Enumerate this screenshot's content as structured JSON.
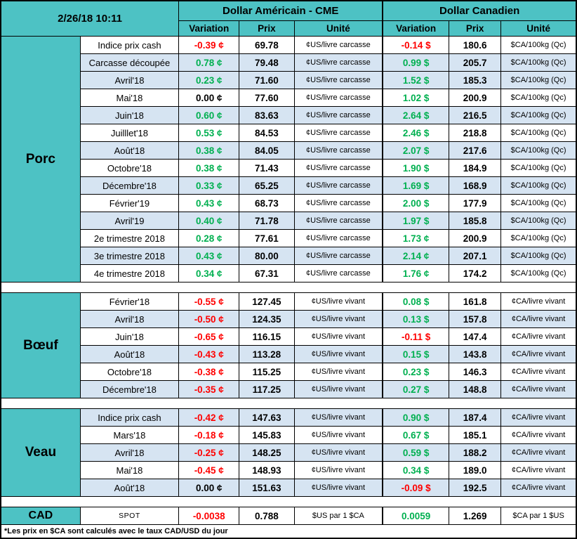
{
  "meta": {
    "timestamp": "2/26/18 10:11"
  },
  "headers": {
    "usd_title": "Dollar Américain - CME",
    "cad_title": "Dollar Canadien",
    "variation": "Variation",
    "prix": "Prix",
    "unite": "Unité"
  },
  "colors": {
    "header_bg": "#4dc2c4",
    "row_alt_bg": "#d6e4f2",
    "negative": "#ff0000",
    "positive": "#00b050"
  },
  "footnote": "*Les prix en $CA sont calculés avec le taux CAD/USD du jour",
  "sections": [
    {
      "name": "Porc",
      "rows": [
        {
          "label": "Indice prix cash",
          "shade": "plain",
          "us_var": "-0.39 ¢",
          "us_trend": "neg",
          "us_prix": "69.78",
          "us_unit": "¢US/livre carcasse",
          "ca_var": "-0.14 $",
          "ca_trend": "neg",
          "ca_prix": "180.6",
          "ca_unit": "$CA/100kg (Qc)"
        },
        {
          "label": "Carcasse découpée",
          "shade": "alt",
          "us_var": "0.78 ¢",
          "us_trend": "pos",
          "us_prix": "79.48",
          "us_unit": "¢US/livre carcasse",
          "ca_var": "0.99 $",
          "ca_trend": "pos",
          "ca_prix": "205.7",
          "ca_unit": "$CA/100kg (Qc)"
        },
        {
          "label": "Avril'18",
          "shade": "alt",
          "us_var": "0.23 ¢",
          "us_trend": "pos",
          "us_prix": "71.60",
          "us_unit": "¢US/livre carcasse",
          "ca_var": "1.52 $",
          "ca_trend": "pos",
          "ca_prix": "185.3",
          "ca_unit": "$CA/100kg (Qc)"
        },
        {
          "label": "Mai'18",
          "shade": "plain",
          "us_var": "0.00 ¢",
          "us_trend": "zero",
          "us_prix": "77.60",
          "us_unit": "¢US/livre carcasse",
          "ca_var": "1.02 $",
          "ca_trend": "pos",
          "ca_prix": "200.9",
          "ca_unit": "$CA/100kg (Qc)"
        },
        {
          "label": "Juin'18",
          "shade": "alt",
          "us_var": "0.60 ¢",
          "us_trend": "pos",
          "us_prix": "83.63",
          "us_unit": "¢US/livre carcasse",
          "ca_var": "2.64 $",
          "ca_trend": "pos",
          "ca_prix": "216.5",
          "ca_unit": "$CA/100kg (Qc)"
        },
        {
          "label": "Juilllet'18",
          "shade": "plain",
          "us_var": "0.53 ¢",
          "us_trend": "pos",
          "us_prix": "84.53",
          "us_unit": "¢US/livre carcasse",
          "ca_var": "2.46 $",
          "ca_trend": "pos",
          "ca_prix": "218.8",
          "ca_unit": "$CA/100kg (Qc)"
        },
        {
          "label": "Août'18",
          "shade": "alt",
          "us_var": "0.38 ¢",
          "us_trend": "pos",
          "us_prix": "84.05",
          "us_unit": "¢US/livre carcasse",
          "ca_var": "2.07 $",
          "ca_trend": "pos",
          "ca_prix": "217.6",
          "ca_unit": "$CA/100kg (Qc)"
        },
        {
          "label": "Octobre'18",
          "shade": "plain",
          "us_var": "0.38 ¢",
          "us_trend": "pos",
          "us_prix": "71.43",
          "us_unit": "¢US/livre carcasse",
          "ca_var": "1.90 $",
          "ca_trend": "pos",
          "ca_prix": "184.9",
          "ca_unit": "$CA/100kg (Qc)"
        },
        {
          "label": "Décembre'18",
          "shade": "alt",
          "us_var": "0.33 ¢",
          "us_trend": "pos",
          "us_prix": "65.25",
          "us_unit": "¢US/livre carcasse",
          "ca_var": "1.69 $",
          "ca_trend": "pos",
          "ca_prix": "168.9",
          "ca_unit": "$CA/100kg (Qc)"
        },
        {
          "label": "Février'19",
          "shade": "plain",
          "us_var": "0.43 ¢",
          "us_trend": "pos",
          "us_prix": "68.73",
          "us_unit": "¢US/livre carcasse",
          "ca_var": "2.00 $",
          "ca_trend": "pos",
          "ca_prix": "177.9",
          "ca_unit": "$CA/100kg (Qc)"
        },
        {
          "label": "Avril'19",
          "shade": "alt",
          "us_var": "0.40 ¢",
          "us_trend": "pos",
          "us_prix": "71.78",
          "us_unit": "¢US/livre carcasse",
          "ca_var": "1.97 $",
          "ca_trend": "pos",
          "ca_prix": "185.8",
          "ca_unit": "$CA/100kg (Qc)"
        },
        {
          "label": "2e trimestre 2018",
          "shade": "plain",
          "us_var": "0.28 ¢",
          "us_trend": "pos",
          "us_prix": "77.61",
          "us_unit": "¢US/livre carcasse",
          "ca_var": "1.73 ¢",
          "ca_trend": "pos",
          "ca_prix": "200.9",
          "ca_unit": "$CA/100kg (Qc)"
        },
        {
          "label": "3e trimestre 2018",
          "shade": "alt",
          "us_var": "0.43 ¢",
          "us_trend": "pos",
          "us_prix": "80.00",
          "us_unit": "¢US/livre carcasse",
          "ca_var": "2.14 ¢",
          "ca_trend": "pos",
          "ca_prix": "207.1",
          "ca_unit": "$CA/100kg (Qc)"
        },
        {
          "label": "4e trimestre 2018",
          "shade": "plain",
          "us_var": "0.34 ¢",
          "us_trend": "pos",
          "us_prix": "67.31",
          "us_unit": "¢US/livre carcasse",
          "ca_var": "1.76 ¢",
          "ca_trend": "pos",
          "ca_prix": "174.2",
          "ca_unit": "$CA/100kg (Qc)"
        }
      ]
    },
    {
      "name": "Bœuf",
      "rows": [
        {
          "label": "Février'18",
          "shade": "plain",
          "us_var": "-0.55 ¢",
          "us_trend": "neg",
          "us_prix": "127.45",
          "us_unit": "¢US/livre vivant",
          "ca_var": "0.08 $",
          "ca_trend": "pos",
          "ca_prix": "161.8",
          "ca_unit": "¢CA/livre vivant"
        },
        {
          "label": "Avril'18",
          "shade": "alt",
          "us_var": "-0.50 ¢",
          "us_trend": "neg",
          "us_prix": "124.35",
          "us_unit": "¢US/livre vivant",
          "ca_var": "0.13 $",
          "ca_trend": "pos",
          "ca_prix": "157.8",
          "ca_unit": "¢CA/livre vivant"
        },
        {
          "label": "Juin'18",
          "shade": "plain",
          "us_var": "-0.65 ¢",
          "us_trend": "neg",
          "us_prix": "116.15",
          "us_unit": "¢US/livre vivant",
          "ca_var": "-0.11 $",
          "ca_trend": "neg",
          "ca_prix": "147.4",
          "ca_unit": "¢CA/livre vivant"
        },
        {
          "label": "Août'18",
          "shade": "alt",
          "us_var": "-0.43 ¢",
          "us_trend": "neg",
          "us_prix": "113.28",
          "us_unit": "¢US/livre vivant",
          "ca_var": "0.15 $",
          "ca_trend": "pos",
          "ca_prix": "143.8",
          "ca_unit": "¢CA/livre vivant"
        },
        {
          "label": "Octobre'18",
          "shade": "plain",
          "us_var": "-0.38 ¢",
          "us_trend": "neg",
          "us_prix": "115.25",
          "us_unit": "¢US/livre vivant",
          "ca_var": "0.23 $",
          "ca_trend": "pos",
          "ca_prix": "146.3",
          "ca_unit": "¢CA/livre vivant"
        },
        {
          "label": "Décembre'18",
          "shade": "alt",
          "us_var": "-0.35 ¢",
          "us_trend": "neg",
          "us_prix": "117.25",
          "us_unit": "¢US/livre vivant",
          "ca_var": "0.27 $",
          "ca_trend": "pos",
          "ca_prix": "148.8",
          "ca_unit": "¢CA/livre vivant"
        }
      ]
    },
    {
      "name": "Veau",
      "rows": [
        {
          "label": "Indice prix cash",
          "shade": "alt",
          "us_var": "-0.42 ¢",
          "us_trend": "neg",
          "us_prix": "147.63",
          "us_unit": "¢US/livre vivant",
          "ca_var": "0.90 $",
          "ca_trend": "pos",
          "ca_prix": "187.4",
          "ca_unit": "¢CA/livre vivant"
        },
        {
          "label": "Mars'18",
          "shade": "plain",
          "us_var": "-0.18 ¢",
          "us_trend": "neg",
          "us_prix": "145.83",
          "us_unit": "¢US/livre vivant",
          "ca_var": "0.67 $",
          "ca_trend": "pos",
          "ca_prix": "185.1",
          "ca_unit": "¢CA/livre vivant"
        },
        {
          "label": "Avril'18",
          "shade": "alt",
          "us_var": "-0.25 ¢",
          "us_trend": "neg",
          "us_prix": "148.25",
          "us_unit": "¢US/livre vivant",
          "ca_var": "0.59 $",
          "ca_trend": "pos",
          "ca_prix": "188.2",
          "ca_unit": "¢CA/livre vivant"
        },
        {
          "label": "Mai'18",
          "shade": "plain",
          "us_var": "-0.45 ¢",
          "us_trend": "neg",
          "us_prix": "148.93",
          "us_unit": "¢US/livre vivant",
          "ca_var": "0.34 $",
          "ca_trend": "pos",
          "ca_prix": "189.0",
          "ca_unit": "¢CA/livre vivant"
        },
        {
          "label": "Août'18",
          "shade": "alt",
          "us_var": "0.00 ¢",
          "us_trend": "zero",
          "us_prix": "151.63",
          "us_unit": "¢US/livre vivant",
          "ca_var": "-0.09 $",
          "ca_trend": "neg",
          "ca_prix": "192.5",
          "ca_unit": "¢CA/livre vivant"
        }
      ]
    },
    {
      "name": "CAD",
      "rows": [
        {
          "label": "SPOT",
          "shade": "plain",
          "us_var": "-0.0038",
          "us_trend": "neg",
          "us_prix": "0.788",
          "us_unit": "$US par 1 $CA",
          "ca_var": "0.0059",
          "ca_trend": "pos",
          "ca_prix": "1.269",
          "ca_unit": "$CA par 1 $US"
        }
      ]
    }
  ]
}
